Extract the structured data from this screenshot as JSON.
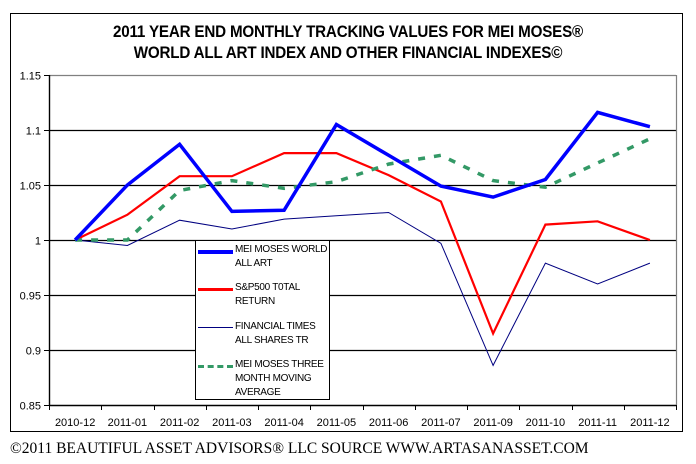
{
  "chart_data": {
    "type": "line",
    "title": "2011 YEAR END MONTHLY TRACKING VALUES FOR MEI MOSES® WORLD ALL ART INDEX AND OTHER FINANCIAL INDEXES©",
    "title_lines": [
      "2011 YEAR END MONTHLY TRACKING VALUES FOR MEI MOSES®",
      "WORLD ALL ART INDEX AND OTHER FINANCIAL INDEXES©"
    ],
    "xlabel": "",
    "ylabel": "",
    "categories": [
      "2010-12",
      "2011-01",
      "2011-02",
      "2011-03",
      "2011-04",
      "2011-05",
      "2011-06",
      "2011-07",
      "2011-09",
      "2011-10",
      "2011-11",
      "2011-12"
    ],
    "ylim": [
      0.85,
      1.15
    ],
    "yticks": [
      0.85,
      0.9,
      0.95,
      1,
      1.05,
      1.1,
      1.15
    ],
    "ytick_labels": [
      "0.85",
      "0.9",
      "0.95",
      "1",
      "1.05",
      "1.1",
      "1.15"
    ],
    "grid": true,
    "legend_position": "center-left (inside plot)",
    "series": [
      {
        "name": "MEI MOSES WORLD ALL ART",
        "color": "#0000ff",
        "style": "solid-thick",
        "values": [
          1.0,
          1.05,
          1.087,
          1.026,
          1.027,
          1.105,
          1.077,
          1.049,
          1.039,
          1.055,
          1.116,
          1.103
        ]
      },
      {
        "name": "S&P500 T0TAL RETURN",
        "color": "#ff0000",
        "style": "solid-medium",
        "values": [
          1.0,
          1.023,
          1.058,
          1.058,
          1.079,
          1.079,
          1.059,
          1.035,
          0.915,
          1.014,
          1.017,
          1.0
        ]
      },
      {
        "name": "FINANCIAL TIMES ALL SHARES TR",
        "color": "#000080",
        "style": "solid-thin",
        "values": [
          1.0,
          0.995,
          1.018,
          1.01,
          1.019,
          1.022,
          1.025,
          0.997,
          0.886,
          0.979,
          0.96,
          0.979
        ]
      },
      {
        "name": "MEI MOSES THREE MONTH MOVING AVERAGE",
        "color": "#339966",
        "style": "dashed",
        "values": [
          1.0,
          1.0,
          1.045,
          1.054,
          1.047,
          1.053,
          1.069,
          1.077,
          1.054,
          1.048,
          1.07,
          1.092
        ]
      }
    ]
  },
  "legend": [
    {
      "label": "MEI MOSES WORLD ALL ART",
      "color": "#0000ff"
    },
    {
      "label": "S&P500 T0TAL RETURN",
      "color": "#ff0000"
    },
    {
      "label": "FINANCIAL TIMES ALL SHARES TR",
      "color": "#000080"
    },
    {
      "label": "MEI MOSES THREE MONTH MOVING AVERAGE",
      "color": "#339966"
    }
  ],
  "footer": "©2011 BEAUTIFUL ASSET ADVISORS® LLC  SOURCE WWW.ARTASANASSET.COM"
}
